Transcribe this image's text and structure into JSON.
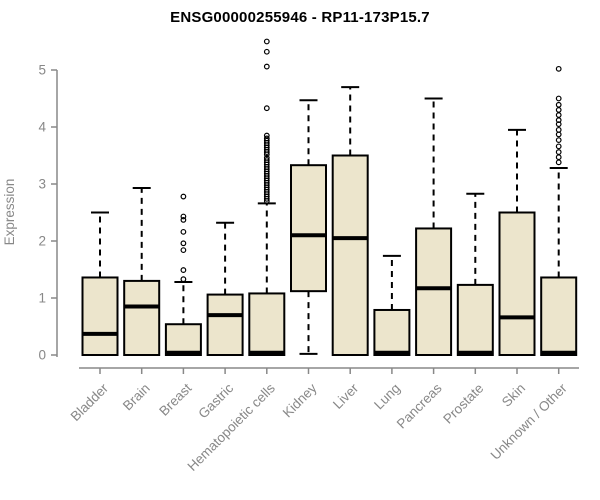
{
  "title": "ENSG00000255946 - RP11-173P15.7",
  "colors": {
    "box_fill": "#ece5cc",
    "box_stroke": "#000000",
    "median": "#000000",
    "whisker": "#000000",
    "outlier": "#000000",
    "axis": "#888888",
    "tick_label": "#888888",
    "title": "#000000"
  },
  "chart_data": {
    "type": "boxplot",
    "title": "ENSG00000255946 - RP11-173P15.7",
    "xlabel": "",
    "ylabel": "Expression",
    "ylim": [
      0,
      5.6
    ],
    "yticks": [
      0,
      1,
      2,
      3,
      4,
      5
    ],
    "grid": false,
    "legend": "none",
    "categories": [
      "Bladder",
      "Brain",
      "Breast",
      "Gastric",
      "Hematopoietic cells",
      "Kidney",
      "Liver",
      "Lung",
      "Pancreas",
      "Prostate",
      "Skin",
      "Unknown / Other"
    ],
    "boxes": [
      {
        "category": "Bladder",
        "whislo": 0,
        "q1": 0,
        "med": 0.37,
        "q3": 1.36,
        "whishi": 2.5,
        "outliers": []
      },
      {
        "category": "Brain",
        "whislo": 0,
        "q1": 0,
        "med": 0.85,
        "q3": 1.3,
        "whishi": 2.93,
        "outliers": []
      },
      {
        "category": "Breast",
        "whislo": 0,
        "q1": 0,
        "med": 0.04,
        "q3": 0.54,
        "whishi": 1.28,
        "outliers": [
          1.33,
          1.49,
          1.84,
          1.96,
          2.16,
          2.37,
          2.43,
          2.78
        ]
      },
      {
        "category": "Gastric",
        "whislo": 0,
        "q1": 0,
        "med": 0.7,
        "q3": 1.06,
        "whishi": 2.32,
        "outliers": []
      },
      {
        "category": "Hematopoietic cells",
        "whislo": 0,
        "q1": 0,
        "med": 0.04,
        "q3": 1.08,
        "whishi": 2.66,
        "outliers": [
          2.7,
          2.74,
          2.78,
          2.82,
          2.86,
          2.9,
          2.94,
          2.98,
          3.02,
          3.06,
          3.1,
          3.14,
          3.18,
          3.22,
          3.26,
          3.3,
          3.34,
          3.38,
          3.42,
          3.46,
          3.52,
          3.56,
          3.6,
          3.64,
          3.68,
          3.72,
          3.76,
          3.8,
          3.85,
          4.33,
          5.06,
          5.32,
          5.5
        ]
      },
      {
        "category": "Kidney",
        "whislo": 0.02,
        "q1": 1.12,
        "med": 2.1,
        "q3": 3.33,
        "whishi": 4.47,
        "outliers": []
      },
      {
        "category": "Liver",
        "whislo": 0,
        "q1": 0,
        "med": 2.05,
        "q3": 3.5,
        "whishi": 4.7,
        "outliers": []
      },
      {
        "category": "Lung",
        "whislo": 0,
        "q1": 0,
        "med": 0.04,
        "q3": 0.79,
        "whishi": 1.74,
        "outliers": []
      },
      {
        "category": "Pancreas",
        "whislo": 0,
        "q1": 0,
        "med": 1.17,
        "q3": 2.22,
        "whishi": 4.5,
        "outliers": []
      },
      {
        "category": "Prostate",
        "whislo": 0,
        "q1": 0,
        "med": 0.04,
        "q3": 1.23,
        "whishi": 2.83,
        "outliers": []
      },
      {
        "category": "Skin",
        "whislo": 0,
        "q1": 0,
        "med": 0.66,
        "q3": 2.5,
        "whishi": 3.95,
        "outliers": []
      },
      {
        "category": "Unknown / Other",
        "whislo": 0,
        "q1": 0,
        "med": 0.04,
        "q3": 1.36,
        "whishi": 3.28,
        "outliers": [
          3.38,
          3.47,
          3.56,
          3.66,
          3.77,
          3.87,
          3.95,
          4.05,
          4.12,
          4.21,
          4.3,
          4.39,
          4.5,
          5.02
        ]
      }
    ]
  }
}
